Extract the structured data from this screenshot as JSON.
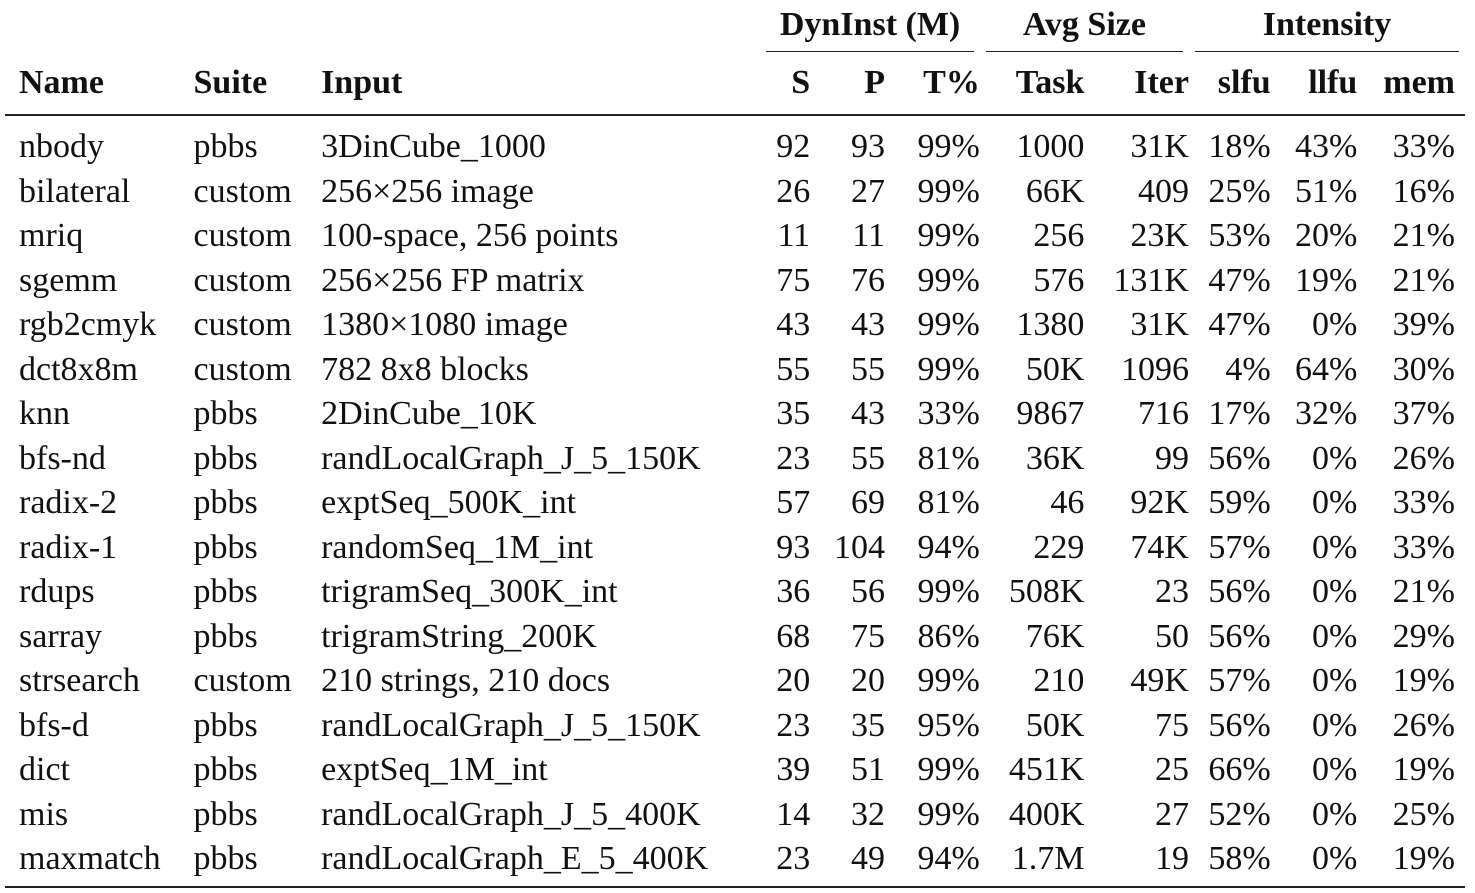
{
  "table": {
    "group_headers": [
      "DynInst (M)",
      "Avg Size",
      "Intensity"
    ],
    "columns": [
      "Name",
      "Suite",
      "Input",
      "S",
      "P",
      "T%",
      "Task",
      "Iter",
      "slfu",
      "llfu",
      "mem"
    ],
    "rows": [
      [
        "nbody",
        "pbbs",
        "3DinCube_1000",
        "92",
        "93",
        "99%",
        "1000",
        "31K",
        "18%",
        "43%",
        "33%"
      ],
      [
        "bilateral",
        "custom",
        "256×256 image",
        "26",
        "27",
        "99%",
        "66K",
        "409",
        "25%",
        "51%",
        "16%"
      ],
      [
        "mriq",
        "custom",
        "100-space, 256 points",
        "11",
        "11",
        "99%",
        "256",
        "23K",
        "53%",
        "20%",
        "21%"
      ],
      [
        "sgemm",
        "custom",
        "256×256 FP matrix",
        "75",
        "76",
        "99%",
        "576",
        "131K",
        "47%",
        "19%",
        "21%"
      ],
      [
        "rgb2cmyk",
        "custom",
        "1380×1080 image",
        "43",
        "43",
        "99%",
        "1380",
        "31K",
        "47%",
        "0%",
        "39%"
      ],
      [
        "dct8x8m",
        "custom",
        "782 8x8 blocks",
        "55",
        "55",
        "99%",
        "50K",
        "1096",
        "4%",
        "64%",
        "30%"
      ],
      [
        "knn",
        "pbbs",
        "2DinCube_10K",
        "35",
        "43",
        "33%",
        "9867",
        "716",
        "17%",
        "32%",
        "37%"
      ],
      [
        "bfs-nd",
        "pbbs",
        "randLocalGraph_J_5_150K",
        "23",
        "55",
        "81%",
        "36K",
        "99",
        "56%",
        "0%",
        "26%"
      ],
      [
        "radix-2",
        "pbbs",
        "exptSeq_500K_int",
        "57",
        "69",
        "81%",
        "46",
        "92K",
        "59%",
        "0%",
        "33%"
      ],
      [
        "radix-1",
        "pbbs",
        "randomSeq_1M_int",
        "93",
        "104",
        "94%",
        "229",
        "74K",
        "57%",
        "0%",
        "33%"
      ],
      [
        "rdups",
        "pbbs",
        "trigramSeq_300K_int",
        "36",
        "56",
        "99%",
        "508K",
        "23",
        "56%",
        "0%",
        "21%"
      ],
      [
        "sarray",
        "pbbs",
        "trigramString_200K",
        "68",
        "75",
        "86%",
        "76K",
        "50",
        "56%",
        "0%",
        "29%"
      ],
      [
        "strsearch",
        "custom",
        "210 strings, 210 docs",
        "20",
        "20",
        "99%",
        "210",
        "49K",
        "57%",
        "0%",
        "19%"
      ],
      [
        "bfs-d",
        "pbbs",
        "randLocalGraph_J_5_150K",
        "23",
        "35",
        "95%",
        "50K",
        "75",
        "56%",
        "0%",
        "26%"
      ],
      [
        "dict",
        "pbbs",
        "exptSeq_1M_int",
        "39",
        "51",
        "99%",
        "451K",
        "25",
        "66%",
        "0%",
        "19%"
      ],
      [
        "mis",
        "pbbs",
        "randLocalGraph_J_5_400K",
        "14",
        "32",
        "99%",
        "400K",
        "27",
        "52%",
        "0%",
        "25%"
      ],
      [
        "maxmatch",
        "pbbs",
        "randLocalGraph_E_5_400K",
        "23",
        "49",
        "94%",
        "1.7M",
        "19",
        "58%",
        "0%",
        "19%"
      ]
    ]
  }
}
